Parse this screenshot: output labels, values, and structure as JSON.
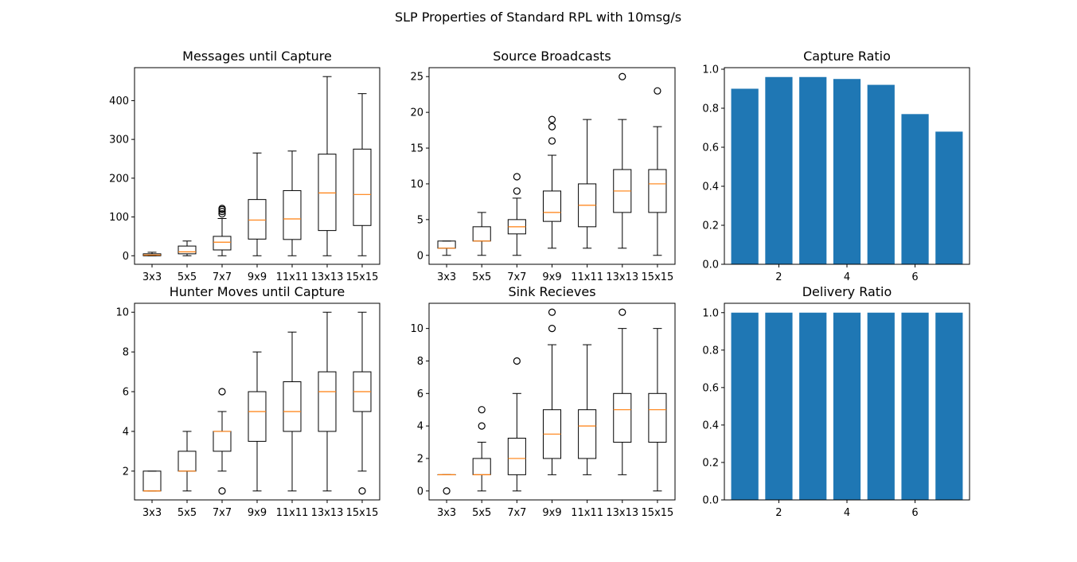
{
  "figure_title": "SLP Properties of Standard RPL with 10msg/s",
  "chart_data": [
    {
      "id": "messages",
      "type": "box",
      "title": "Messages until Capture",
      "xlabel": "",
      "ylabel": "",
      "categories": [
        "3x3",
        "5x5",
        "7x7",
        "9x9",
        "11x11",
        "13x13",
        "15x15"
      ],
      "ylim": [
        -22,
        485
      ],
      "yticks": [
        0,
        100,
        200,
        300,
        400
      ],
      "boxes": [
        {
          "whislo": 0,
          "q1": 0,
          "med": 2,
          "q3": 5,
          "whishi": 9,
          "fliers": []
        },
        {
          "whislo": 0,
          "q1": 5,
          "med": 10,
          "q3": 25,
          "whishi": 38,
          "fliers": []
        },
        {
          "whislo": 0,
          "q1": 15,
          "med": 35,
          "q3": 50,
          "whishi": 96,
          "fliers": [
            108,
            114,
            119,
            122
          ]
        },
        {
          "whislo": 0,
          "q1": 43,
          "med": 92,
          "q3": 145,
          "whishi": 265,
          "fliers": []
        },
        {
          "whislo": 0,
          "q1": 42,
          "med": 95,
          "q3": 168,
          "whishi": 270,
          "fliers": []
        },
        {
          "whislo": 0,
          "q1": 65,
          "med": 162,
          "q3": 262,
          "whishi": 462,
          "fliers": []
        },
        {
          "whislo": 0,
          "q1": 78,
          "med": 158,
          "q3": 275,
          "whishi": 418,
          "fliers": []
        }
      ]
    },
    {
      "id": "broadcasts",
      "type": "box",
      "title": "Source Broadcasts",
      "xlabel": "",
      "ylabel": "",
      "categories": [
        "3x3",
        "5x5",
        "7x7",
        "9x9",
        "11x11",
        "13x13",
        "15x15"
      ],
      "ylim": [
        -1.25,
        26.25
      ],
      "yticks": [
        0,
        5,
        10,
        15,
        20,
        25
      ],
      "boxes": [
        {
          "whislo": 0,
          "q1": 1,
          "med": 1,
          "q3": 2,
          "whishi": 2,
          "fliers": []
        },
        {
          "whislo": 0,
          "q1": 2,
          "med": 2,
          "q3": 4,
          "whishi": 6,
          "fliers": []
        },
        {
          "whislo": 0,
          "q1": 3,
          "med": 4,
          "q3": 5,
          "whishi": 8,
          "fliers": [
            9,
            11
          ]
        },
        {
          "whislo": 1,
          "q1": 4.75,
          "med": 6,
          "q3": 9,
          "whishi": 14,
          "fliers": [
            16,
            18,
            19
          ]
        },
        {
          "whislo": 1,
          "q1": 4,
          "med": 7,
          "q3": 10,
          "whishi": 19,
          "fliers": []
        },
        {
          "whislo": 1,
          "q1": 6,
          "med": 9,
          "q3": 12,
          "whishi": 19,
          "fliers": [
            25
          ]
        },
        {
          "whislo": 0,
          "q1": 6,
          "med": 10,
          "q3": 12,
          "whishi": 18,
          "fliers": [
            23
          ]
        }
      ]
    },
    {
      "id": "capture",
      "type": "bar",
      "title": "Capture Ratio",
      "xlabel": "",
      "ylabel": "",
      "x": [
        1,
        2,
        3,
        4,
        5,
        6,
        7
      ],
      "values": [
        0.9,
        0.96,
        0.96,
        0.95,
        0.92,
        0.77,
        0.68
      ],
      "xlim": [
        0.4,
        7.6
      ],
      "ylim": [
        0,
        1.008
      ],
      "xticks": [
        2,
        4,
        6
      ],
      "yticks": [
        0.0,
        0.2,
        0.4,
        0.6,
        0.8,
        1.0
      ],
      "bar_color": "#1f77b4"
    },
    {
      "id": "hunter",
      "type": "box",
      "title": "Hunter Moves until Capture",
      "xlabel": "",
      "ylabel": "",
      "categories": [
        "3x3",
        "5x5",
        "7x7",
        "9x9",
        "11x11",
        "13x13",
        "15x15"
      ],
      "ylim": [
        0.55,
        10.45
      ],
      "yticks": [
        2,
        4,
        6,
        8,
        10
      ],
      "boxes": [
        {
          "whislo": 1,
          "q1": 1,
          "med": 1,
          "q3": 2,
          "whishi": 2,
          "fliers": []
        },
        {
          "whislo": 1,
          "q1": 2,
          "med": 2,
          "q3": 3,
          "whishi": 4,
          "fliers": []
        },
        {
          "whislo": 2,
          "q1": 3,
          "med": 4,
          "q3": 4,
          "whishi": 5,
          "fliers": [
            1,
            6
          ]
        },
        {
          "whislo": 1,
          "q1": 3.5,
          "med": 5,
          "q3": 6,
          "whishi": 8,
          "fliers": []
        },
        {
          "whislo": 1,
          "q1": 4,
          "med": 5,
          "q3": 6.5,
          "whishi": 9,
          "fliers": []
        },
        {
          "whislo": 1,
          "q1": 4,
          "med": 6,
          "q3": 7,
          "whishi": 10,
          "fliers": []
        },
        {
          "whislo": 2,
          "q1": 5,
          "med": 6,
          "q3": 7,
          "whishi": 10,
          "fliers": [
            1
          ]
        }
      ]
    },
    {
      "id": "sink",
      "type": "box",
      "title": "Sink Recieves",
      "xlabel": "",
      "ylabel": "",
      "categories": [
        "3x3",
        "5x5",
        "7x7",
        "9x9",
        "11x11",
        "13x13",
        "15x15"
      ],
      "ylim": [
        -0.55,
        11.55
      ],
      "yticks": [
        0,
        2,
        4,
        6,
        8,
        10
      ],
      "boxes": [
        {
          "whislo": 1,
          "q1": 1,
          "med": 1,
          "q3": 1,
          "whishi": 1,
          "fliers": [
            0
          ]
        },
        {
          "whislo": 0,
          "q1": 1,
          "med": 1,
          "q3": 2,
          "whishi": 3,
          "fliers": [
            4,
            5
          ]
        },
        {
          "whislo": 0,
          "q1": 1,
          "med": 2,
          "q3": 3.25,
          "whishi": 6,
          "fliers": [
            8
          ]
        },
        {
          "whislo": 1,
          "q1": 2,
          "med": 3.5,
          "q3": 5,
          "whishi": 9,
          "fliers": [
            10,
            11
          ]
        },
        {
          "whislo": 1,
          "q1": 2,
          "med": 4,
          "q3": 5,
          "whishi": 9,
          "fliers": []
        },
        {
          "whislo": 1,
          "q1": 3,
          "med": 5,
          "q3": 6,
          "whishi": 10,
          "fliers": [
            11
          ]
        },
        {
          "whislo": 0,
          "q1": 3,
          "med": 5,
          "q3": 6,
          "whishi": 10,
          "fliers": []
        }
      ]
    },
    {
      "id": "delivery",
      "type": "bar",
      "title": "Delivery Ratio",
      "xlabel": "",
      "ylabel": "",
      "x": [
        1,
        2,
        3,
        4,
        5,
        6,
        7
      ],
      "values": [
        1.0,
        1.0,
        1.0,
        1.0,
        1.0,
        1.0,
        1.0
      ],
      "xlim": [
        0.4,
        7.6
      ],
      "ylim": [
        0,
        1.05
      ],
      "xticks": [
        2,
        4,
        6
      ],
      "yticks": [
        0.0,
        0.2,
        0.4,
        0.6,
        0.8,
        1.0
      ],
      "bar_color": "#1f77b4"
    }
  ]
}
